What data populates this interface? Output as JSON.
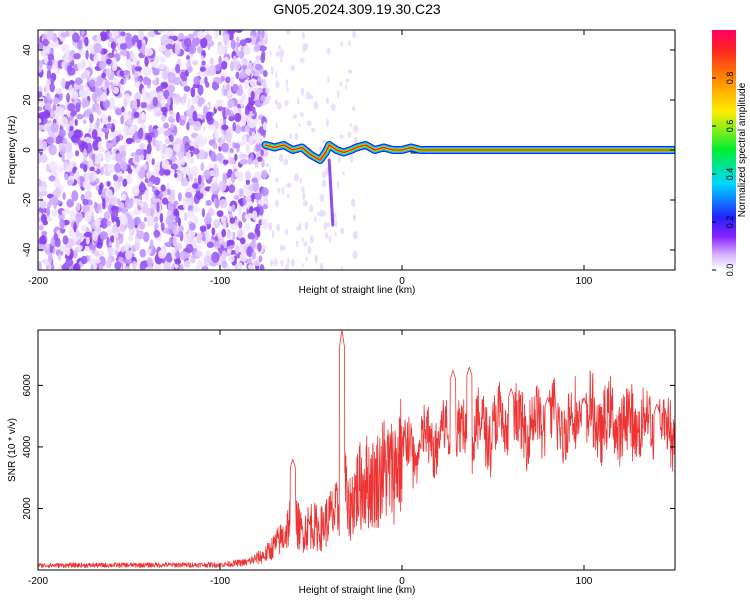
{
  "title": "GN05.2024.309.19.30.C23",
  "chart_data": [
    {
      "type": "heatmap",
      "name": "spectrogram",
      "xlabel": "Height of straight line (km)",
      "ylabel": "Frequency (Hz)",
      "xlim": [
        -200,
        150
      ],
      "ylim": [
        -48,
        48
      ],
      "xticks": [
        -200,
        -100,
        0,
        100
      ],
      "yticks": [
        -40,
        -20,
        0,
        20,
        40
      ],
      "noise_region_x": [
        -200,
        -75
      ],
      "signal_track": {
        "x": [
          -75,
          -70,
          -65,
          -60,
          -55,
          -50,
          -45,
          -42,
          -40,
          -36,
          -32,
          -28,
          -25,
          -20,
          -15,
          -10,
          -5,
          0,
          5,
          10,
          40,
          80,
          100,
          150
        ],
        "y": [
          2,
          1,
          2,
          0,
          1,
          -2,
          -4,
          -1,
          2,
          0,
          -1,
          0,
          1,
          2,
          0,
          1,
          0,
          0,
          1,
          0,
          0,
          0,
          0,
          0
        ]
      },
      "colorbar": {
        "label": "Normalized spectral amplitude",
        "range": [
          0,
          1
        ],
        "ticks": [
          0.0,
          0.2,
          0.4,
          0.6,
          0.8
        ]
      }
    },
    {
      "type": "line",
      "name": "snr",
      "xlabel": "Height of straight line (km)",
      "ylabel": "SNR (10 * v/v)",
      "xlim": [
        -200,
        150
      ],
      "ylim": [
        0,
        7800
      ],
      "xticks": [
        -200,
        -100,
        0,
        100
      ],
      "yticks": [
        2000,
        4000,
        6000
      ],
      "color": "#ee3333",
      "envelope": {
        "x": [
          -200,
          -150,
          -100,
          -85,
          -75,
          -65,
          -60,
          -55,
          -50,
          -45,
          -40,
          -35,
          -32,
          -30,
          -25,
          -20,
          -15,
          -10,
          -5,
          0,
          10,
          20,
          30,
          40,
          50,
          60,
          70,
          80,
          90,
          100,
          110,
          120,
          130,
          140,
          150
        ],
        "y": [
          150,
          160,
          170,
          250,
          500,
          1100,
          1800,
          1200,
          1500,
          1300,
          1700,
          1900,
          3900,
          1800,
          2600,
          2900,
          2800,
          3300,
          3200,
          3800,
          4000,
          4300,
          4500,
          4500,
          4700,
          4600,
          4800,
          4700,
          4800,
          4900,
          4800,
          4700,
          4800,
          4700,
          4600
        ]
      },
      "peaks": [
        {
          "x": -60,
          "y": 3600
        },
        {
          "x": -33,
          "y": 7800
        },
        {
          "x": 28,
          "y": 6500
        },
        {
          "x": 37,
          "y": 6600
        },
        {
          "x": 60,
          "y": 5900
        },
        {
          "x": 80,
          "y": 5600
        },
        {
          "x": 100,
          "y": 5600
        },
        {
          "x": 140,
          "y": 5400
        }
      ]
    }
  ]
}
